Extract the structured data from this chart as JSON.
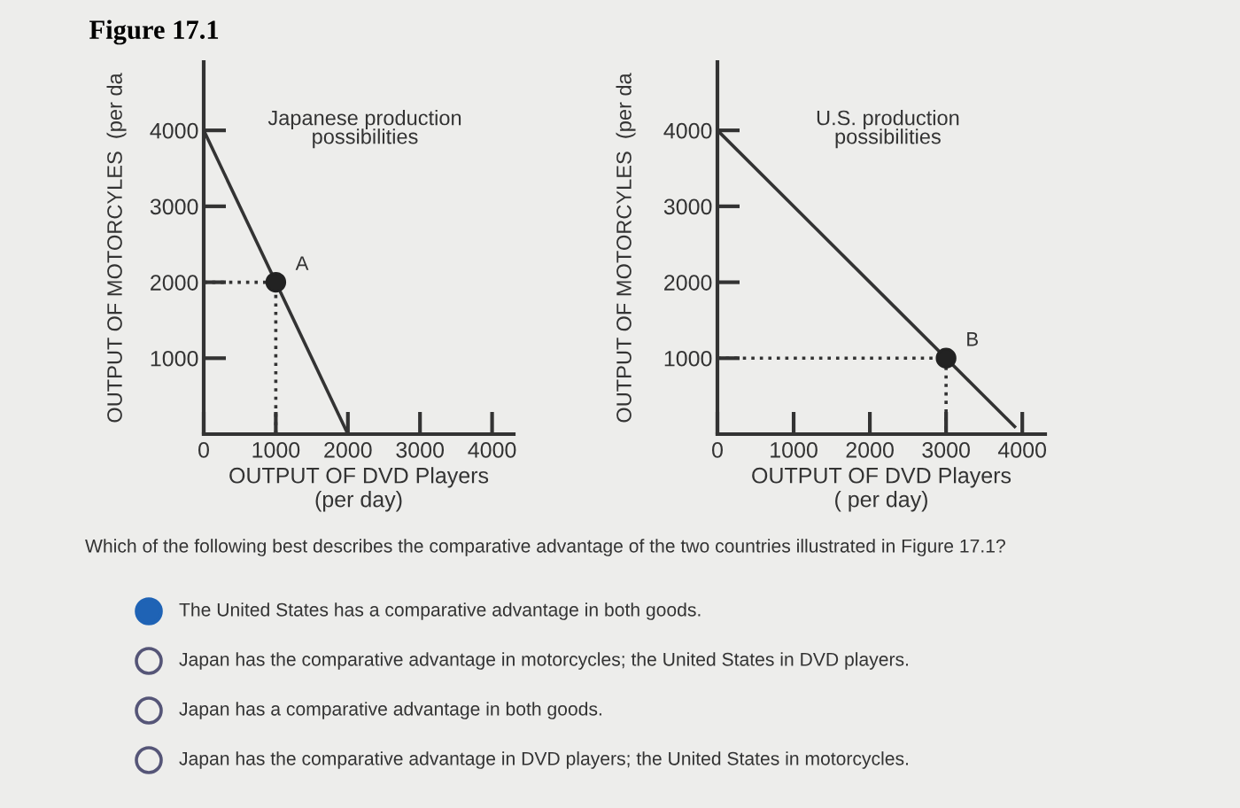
{
  "chart_data": [
    {
      "type": "line",
      "title": "Figure 17.1",
      "xlabel": "OUTPUT OF DVD Players\n(per day)",
      "ylabel": "OUTPUT OF MOTORCYLES  (per da",
      "xlim": [
        0,
        4300
      ],
      "ylim": [
        0,
        4900
      ],
      "xticks": [
        0,
        1000,
        2000,
        3000,
        4000
      ],
      "yticks": [
        1000,
        2000,
        3000,
        4000
      ],
      "grid": false,
      "legend": false,
      "annotations": [
        "Japanese production\npossibilities",
        {
          "text": "A",
          "x": 1000,
          "y": 2000
        }
      ],
      "series": [
        {
          "type": "line",
          "x": [
            0,
            2000
          ],
          "values": [
            4000,
            0
          ],
          "color": "#333333",
          "line_style": "solid",
          "marker": "none"
        },
        {
          "type": "line",
          "x": [
            0,
            1000,
            1000
          ],
          "values": [
            2000,
            2000,
            0
          ],
          "color": "#333333",
          "line_style": "dotted",
          "marker": "none"
        },
        {
          "type": "scatter",
          "x": [
            1000
          ],
          "values": [
            2000
          ],
          "color": "#222222",
          "marker": "circle"
        }
      ]
    },
    {
      "type": "line",
      "xlabel": "OUTPUT OF DVD Players\n( per day)",
      "ylabel": "OUTPUT OF MOTORCYLES  (per da",
      "xlim": [
        0,
        4300
      ],
      "ylim": [
        0,
        4900
      ],
      "xticks": [
        0,
        1000,
        2000,
        3000,
        4000
      ],
      "yticks": [
        1000,
        2000,
        3000,
        4000
      ],
      "grid": false,
      "legend": false,
      "annotations": [
        "U.S. production\npossibilities",
        {
          "text": "B",
          "x": 3000,
          "y": 1000
        }
      ],
      "series": [
        {
          "type": "line",
          "x": [
            0,
            3900
          ],
          "values": [
            4000,
            100
          ],
          "color": "#333333",
          "line_style": "solid",
          "marker": "none"
        },
        {
          "type": "line",
          "x": [
            0,
            3000,
            3000
          ],
          "values": [
            1000,
            1000,
            0
          ],
          "color": "#333333",
          "line_style": "dotted",
          "marker": "none"
        },
        {
          "type": "scatter",
          "x": [
            3000
          ],
          "values": [
            1000
          ],
          "color": "#222222",
          "marker": "circle"
        }
      ]
    },
    {
      "type": "other",
      "annotations": [
        "Which of the following best describes the comparative advantage of the two countries illustrated in Figure 17.1?",
        "The United States has a comparative advantage in both goods.",
        "Japan has the comparative advantage in motorcycles; the United States in DVD players.",
        "Japan has a comparative advantage in both goods.",
        "Japan has the comparative advantage in DVD players; the United States in motorcycles."
      ]
    }
  ]
}
